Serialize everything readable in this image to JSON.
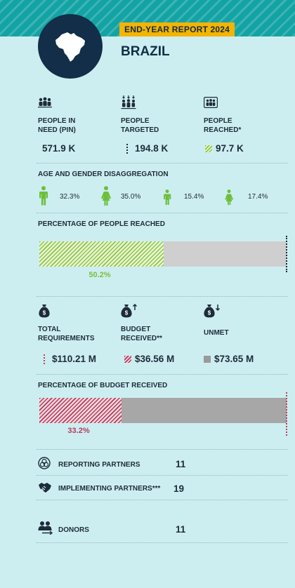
{
  "header": {
    "report_tag": "END-YEAR REPORT 2024",
    "country": "BRAZIL"
  },
  "people": {
    "pin_label": "PEOPLE IN NEED (PIN)",
    "pin_value": "571.9 K",
    "targeted_label": "PEOPLE TARGETED",
    "targeted_value": "194.8 K",
    "reached_label": "PEOPLE REACHED*",
    "reached_value": "97.7 K"
  },
  "age_gender": {
    "title": "AGE AND GENDER DISAGGREGATION",
    "groups": [
      {
        "icon": "man-icon",
        "value": "32.3%"
      },
      {
        "icon": "woman-icon",
        "value": "35.0%"
      },
      {
        "icon": "boy-icon",
        "value": "15.4%"
      },
      {
        "icon": "girl-icon",
        "value": "17.4%"
      }
    ]
  },
  "reached_pct": {
    "title": "PERCENTAGE OF PEOPLE REACHED",
    "value": 50.2,
    "label": "50.2%"
  },
  "budget": {
    "total_label": "TOTAL REQUIREMENTS",
    "total_value": "$110.21 M",
    "received_label": "BUDGET RECEIVED**",
    "received_value": "$36.56 M",
    "unmet_label": "UNMET",
    "unmet_value": "$73.65 M"
  },
  "budget_pct": {
    "title": "PERCENTAGE OF BUDGET RECEIVED",
    "value": 33.2,
    "label": "33.2%"
  },
  "partners": {
    "reporting_label": "REPORTING PARTNERS",
    "reporting_value": "11",
    "implementing_label": "IMPLEMENTING PARTNERS***",
    "implementing_value": "19",
    "donors_label": "DONORS",
    "donors_value": "11"
  },
  "colors": {
    "teal": "#14a3a4",
    "navy": "#122e48",
    "yellow": "#f4b400",
    "green": "#8dc63f",
    "red": "#b43c5c",
    "background": "#cdeef0"
  }
}
